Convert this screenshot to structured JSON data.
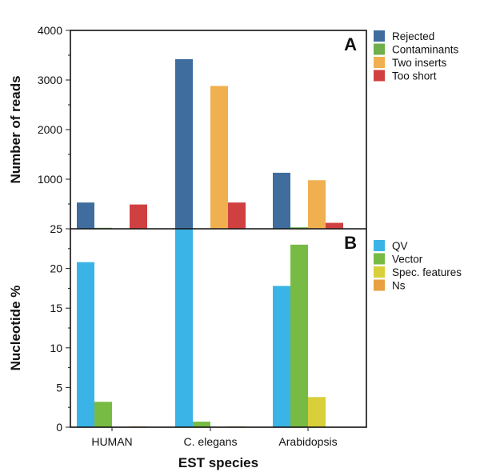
{
  "chart_data": [
    {
      "type": "bar",
      "panel_label": "A",
      "ylabel": "Number of reads",
      "ylim": [
        0,
        4000
      ],
      "yticks": [
        1000,
        2000,
        3000,
        4000
      ],
      "categories": [
        "HUMAN",
        "C. elegans",
        "Arabidopsis"
      ],
      "legend_position": "right",
      "series": [
        {
          "name": "Rejected",
          "color": "#3f6d9e",
          "values": [
            530,
            3420,
            1130
          ]
        },
        {
          "name": "Contaminants",
          "color": "#6eb04c",
          "values": [
            20,
            0,
            30
          ]
        },
        {
          "name": "Two inserts",
          "color": "#f0b050",
          "values": [
            0,
            2880,
            980
          ]
        },
        {
          "name": "Too short",
          "color": "#d04040",
          "values": [
            490,
            530,
            120
          ]
        }
      ]
    },
    {
      "type": "bar",
      "panel_label": "B",
      "ylabel": "Nucleotide %",
      "xlabel": "EST species",
      "ylim": [
        0,
        25
      ],
      "yticks": [
        0,
        5,
        10,
        15,
        20,
        25
      ],
      "categories": [
        "HUMAN",
        "C. elegans",
        "Arabidopsis"
      ],
      "legend_position": "right",
      "series": [
        {
          "name": "QV",
          "color": "#3ab4e6",
          "values": [
            20.8,
            25,
            17.8
          ]
        },
        {
          "name": "Vector",
          "color": "#78bb44",
          "values": [
            3.2,
            0.7,
            23
          ]
        },
        {
          "name": "Spec. features",
          "color": "#d8cf3a",
          "values": [
            0,
            0,
            3.8
          ]
        },
        {
          "name": "Ns",
          "color": "#e8a040",
          "values": [
            0.1,
            0.1,
            0
          ]
        }
      ]
    }
  ]
}
